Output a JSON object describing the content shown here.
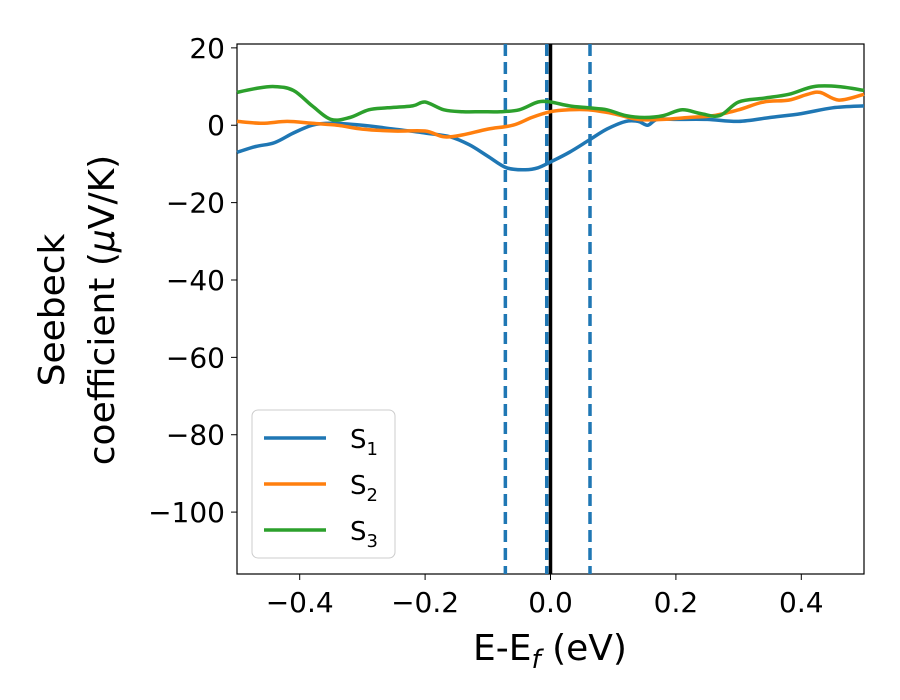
{
  "chart_data": {
    "type": "line",
    "title": "",
    "xlabel": {
      "main": "E-E",
      "sub": "f",
      "unit": " (eV)"
    },
    "ylabel": {
      "line1": "Seebeck",
      "line2_text": "coefficient  (",
      "line2_mu": "μ",
      "line2_end": "V/K)"
    },
    "xlim": [
      -0.5,
      0.5
    ],
    "ylim": [
      -116,
      21
    ],
    "xticks": [
      -0.4,
      -0.2,
      0.0,
      0.2,
      0.4
    ],
    "xtick_labels": [
      "−0.4",
      "−0.2",
      "0.0",
      "0.2",
      "0.4"
    ],
    "yticks": [
      20,
      0,
      -20,
      -40,
      -60,
      -80,
      -100
    ],
    "ytick_labels": [
      "20",
      "0",
      "−20",
      "−40",
      "−60",
      "−80",
      "−100"
    ],
    "grid": false,
    "legend_position": "lower-left",
    "vlines": [
      {
        "x": -0.072,
        "style": "dashed",
        "color": "#1f77b4"
      },
      {
        "x": -0.006,
        "style": "dashed",
        "color": "#1f77b4"
      },
      {
        "x": 0.0,
        "style": "solid",
        "color": "#000000"
      },
      {
        "x": 0.063,
        "style": "dashed",
        "color": "#1f77b4"
      }
    ],
    "series": [
      {
        "name": "S",
        "sub": "1",
        "color": "#1f77b4",
        "points": [
          [
            -0.5,
            -7
          ],
          [
            -0.47,
            -5.5
          ],
          [
            -0.44,
            -4.5
          ],
          [
            -0.41,
            -2
          ],
          [
            -0.38,
            0
          ],
          [
            -0.35,
            0.5
          ],
          [
            -0.3,
            0
          ],
          [
            -0.25,
            -1
          ],
          [
            -0.2,
            -2
          ],
          [
            -0.16,
            -3
          ],
          [
            -0.13,
            -5
          ],
          [
            -0.1,
            -8
          ],
          [
            -0.07,
            -11
          ],
          [
            -0.04,
            -11.5
          ],
          [
            -0.02,
            -11
          ],
          [
            0.0,
            -9.5
          ],
          [
            0.03,
            -7
          ],
          [
            0.06,
            -4
          ],
          [
            0.09,
            -1
          ],
          [
            0.12,
            1
          ],
          [
            0.14,
            1
          ],
          [
            0.155,
            0
          ],
          [
            0.17,
            1.5
          ],
          [
            0.2,
            1.5
          ],
          [
            0.25,
            1.5
          ],
          [
            0.3,
            1
          ],
          [
            0.35,
            2
          ],
          [
            0.4,
            3
          ],
          [
            0.45,
            4.5
          ],
          [
            0.5,
            5
          ]
        ]
      },
      {
        "name": "S",
        "sub": "2",
        "color": "#ff7f0e",
        "points": [
          [
            -0.5,
            1
          ],
          [
            -0.46,
            0.5
          ],
          [
            -0.42,
            1
          ],
          [
            -0.38,
            0.5
          ],
          [
            -0.34,
            0
          ],
          [
            -0.3,
            -1
          ],
          [
            -0.25,
            -1.5
          ],
          [
            -0.2,
            -1.5
          ],
          [
            -0.17,
            -3
          ],
          [
            -0.14,
            -2.5
          ],
          [
            -0.1,
            -1
          ],
          [
            -0.06,
            0
          ],
          [
            -0.03,
            2
          ],
          [
            0.0,
            3.5
          ],
          [
            0.03,
            4
          ],
          [
            0.06,
            4
          ],
          [
            0.1,
            3
          ],
          [
            0.14,
            1.5
          ],
          [
            0.18,
            1.5
          ],
          [
            0.22,
            2
          ],
          [
            0.26,
            2.5
          ],
          [
            0.3,
            4
          ],
          [
            0.34,
            6
          ],
          [
            0.38,
            6.5
          ],
          [
            0.41,
            8
          ],
          [
            0.43,
            8.5
          ],
          [
            0.46,
            6.5
          ],
          [
            0.5,
            8
          ]
        ]
      },
      {
        "name": "S",
        "sub": "3",
        "color": "#2ca02c",
        "points": [
          [
            -0.5,
            8.5
          ],
          [
            -0.47,
            9.5
          ],
          [
            -0.44,
            10
          ],
          [
            -0.41,
            9
          ],
          [
            -0.38,
            5
          ],
          [
            -0.35,
            1.5
          ],
          [
            -0.32,
            2
          ],
          [
            -0.29,
            4
          ],
          [
            -0.26,
            4.5
          ],
          [
            -0.22,
            5
          ],
          [
            -0.2,
            6
          ],
          [
            -0.17,
            4
          ],
          [
            -0.14,
            3.5
          ],
          [
            -0.11,
            3.5
          ],
          [
            -0.08,
            3.5
          ],
          [
            -0.05,
            4
          ],
          [
            -0.02,
            6
          ],
          [
            0.0,
            6
          ],
          [
            0.03,
            5
          ],
          [
            0.06,
            4.5
          ],
          [
            0.09,
            4
          ],
          [
            0.12,
            2.5
          ],
          [
            0.15,
            2
          ],
          [
            0.18,
            2.5
          ],
          [
            0.21,
            4
          ],
          [
            0.24,
            3
          ],
          [
            0.27,
            2.5
          ],
          [
            0.3,
            6
          ],
          [
            0.34,
            7
          ],
          [
            0.38,
            8
          ],
          [
            0.42,
            10
          ],
          [
            0.46,
            10
          ],
          [
            0.5,
            9
          ]
        ]
      }
    ]
  }
}
